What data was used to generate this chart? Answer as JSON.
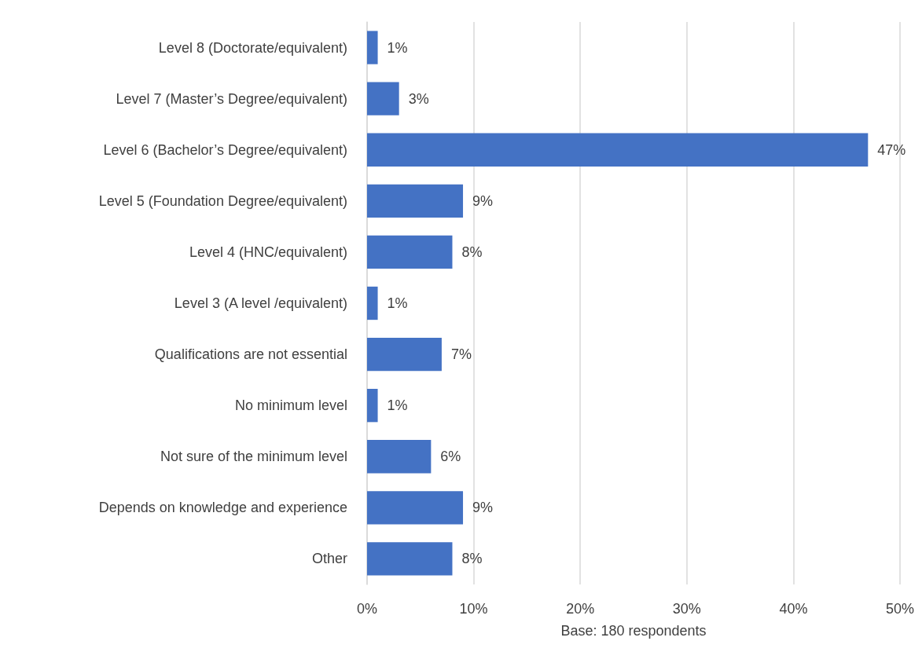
{
  "chart_data": {
    "type": "bar",
    "orientation": "horizontal",
    "xlabel": "Base: 180 respondents",
    "categories": [
      "Level 8 (Doctorate/equivalent)",
      "Level 7 (Master’s Degree/equivalent)",
      "Level 6 (Bachelor’s Degree/equivalent)",
      "Level 5 (Foundation Degree/equivalent)",
      "Level 4 (HNC/equivalent)",
      "Level 3 (A level /equivalent)",
      "Qualifications are not essential",
      "No minimum level",
      "Not sure of the minimum level",
      "Depends on knowledge and experience",
      "Other"
    ],
    "values": [
      1,
      3,
      47,
      9,
      8,
      1,
      7,
      1,
      6,
      9,
      8
    ],
    "value_labels": [
      "1%",
      "3%",
      "47%",
      "9%",
      "8%",
      "1%",
      "7%",
      "1%",
      "6%",
      "9%",
      "8%"
    ],
    "color": "#4472c4",
    "xlim": [
      0,
      50
    ],
    "xticks": [
      {
        "value": 0,
        "label": "0%"
      },
      {
        "value": 10,
        "label": "10%"
      },
      {
        "value": 20,
        "label": "20%"
      },
      {
        "value": 30,
        "label": "30%"
      },
      {
        "value": 40,
        "label": "40%"
      },
      {
        "value": 50,
        "label": "50%"
      }
    ],
    "grid": "x"
  }
}
